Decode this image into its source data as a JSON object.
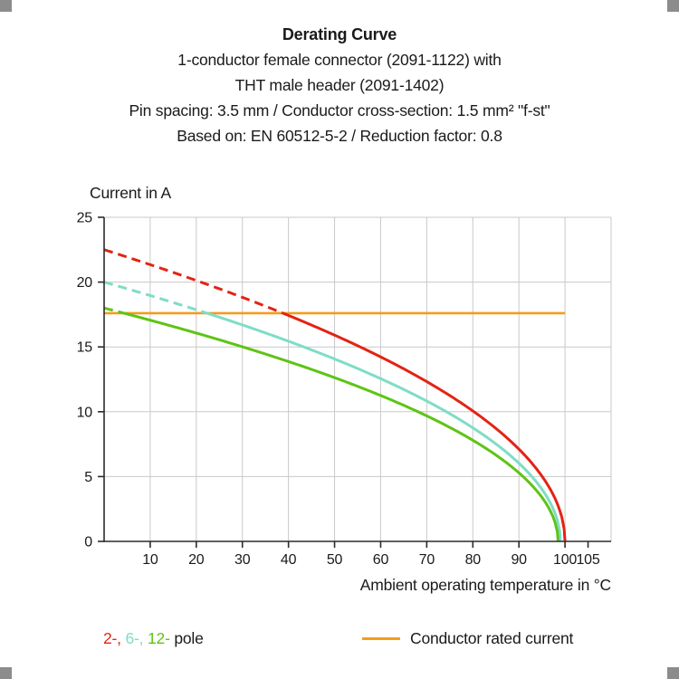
{
  "header": {
    "title": "Derating Curve",
    "lines": [
      "1-conductor female connector (2091-1122) with",
      "THT male header (2091-1402)",
      "Pin spacing: 3.5 mm / Conductor cross-section: 1.5 mm² \"f-st\"",
      "Based on: EN 60512-5-2 / Reduction factor: 0.8"
    ]
  },
  "chart_data": {
    "type": "line",
    "title": "Derating Curve",
    "ylabel": "Current in A",
    "xlabel": "Ambient operating temperature in °C",
    "xlim": [
      0,
      110
    ],
    "ylim": [
      0,
      25
    ],
    "x_ticks": [
      10,
      20,
      30,
      40,
      50,
      60,
      70,
      80,
      90,
      100,
      105
    ],
    "y_ticks": [
      0,
      5,
      10,
      15,
      20,
      25
    ],
    "grid": true,
    "style": {
      "grid": "#c9c9c9",
      "axis": "#2b2b2b",
      "text": "#1a1a1a"
    },
    "rated_current": {
      "label": "Conductor rated current",
      "value": 17.6,
      "x_start": 0,
      "x_end": 100,
      "color": "#f49b1f"
    },
    "series": [
      {
        "name": "2-pole",
        "color": "#e42313",
        "i0": 22.5,
        "t_end": 100,
        "dashed_above": 17.6,
        "x": [
          0,
          10,
          20,
          30,
          40,
          50,
          60,
          70,
          80,
          90,
          100
        ],
        "values": [
          22.5,
          21.3,
          20.1,
          18.8,
          17.4,
          15.9,
          14.2,
          12.3,
          10.1,
          7.1,
          0
        ]
      },
      {
        "name": "6-pole",
        "color": "#7eddc6",
        "i0": 20,
        "t_end": 99,
        "dashed_above": 17.6,
        "x": [
          0,
          10,
          20,
          30,
          40,
          50,
          60,
          70,
          80,
          90,
          99
        ],
        "values": [
          20,
          19.0,
          17.9,
          16.7,
          15.4,
          14.1,
          12.5,
          10.8,
          8.8,
          6.0,
          0
        ]
      },
      {
        "name": "12-pole",
        "color": "#5ec414",
        "i0": 18,
        "t_end": 98.5,
        "dashed_above": 17.6,
        "x": [
          0,
          10,
          20,
          30,
          40,
          50,
          60,
          70,
          80,
          90,
          98.5
        ],
        "values": [
          18,
          17.1,
          16.1,
          15.0,
          13.9,
          12.6,
          11.3,
          9.7,
          7.9,
          5.3,
          0
        ]
      }
    ],
    "legend_position": "bottom"
  },
  "legend": {
    "pole_segments": [
      {
        "text": "2-, ",
        "color": "#e42313"
      },
      {
        "text": "6-, ",
        "color": "#7eddc6"
      },
      {
        "text": "12- ",
        "color": "#5ec414"
      },
      {
        "text": "pole",
        "color": "#1a1a1a"
      }
    ],
    "rated_label": "Conductor rated current"
  }
}
